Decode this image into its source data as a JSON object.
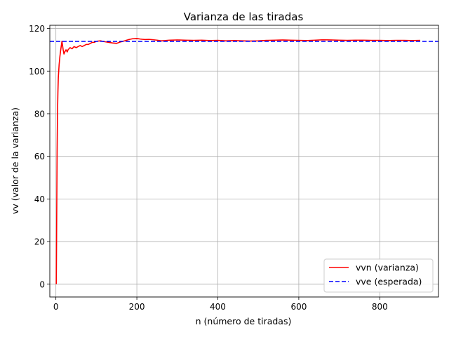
{
  "chart_data": {
    "type": "line",
    "title": "Varianza de las tiradas",
    "xlabel": "n (número de tiradas)",
    "ylabel": "vv (valor de la varianza)",
    "xlim": [
      -15,
      945
    ],
    "ylim": [
      -6,
      121.5
    ],
    "xticks": [
      0,
      200,
      400,
      600,
      800
    ],
    "yticks": [
      0,
      20,
      40,
      60,
      80,
      100,
      120
    ],
    "grid": true,
    "legend_position": "lower-right",
    "series": [
      {
        "name": "vvn (varianza)",
        "color": "#ff0000",
        "style": "solid",
        "x": [
          1,
          2,
          3,
          4,
          5,
          6,
          8,
          10,
          12,
          15,
          18,
          20,
          22,
          25,
          28,
          30,
          35,
          40,
          45,
          50,
          55,
          60,
          65,
          70,
          75,
          80,
          85,
          90,
          95,
          100,
          110,
          120,
          130,
          140,
          150,
          160,
          170,
          180,
          190,
          200,
          210,
          220,
          230,
          240,
          250,
          260,
          270,
          280,
          300,
          320,
          340,
          360,
          380,
          400,
          420,
          440,
          460,
          480,
          500,
          520,
          540,
          560,
          580,
          600,
          620,
          640,
          660,
          680,
          700,
          720,
          740,
          760,
          780,
          800,
          820,
          840,
          860,
          880,
          900
        ],
        "y": [
          0,
          30,
          62,
          80,
          90,
          97,
          103,
          107,
          110,
          114,
          110,
          108,
          109,
          110,
          109,
          110,
          111,
          110.5,
          111.5,
          111,
          111.5,
          112,
          111.5,
          112,
          112.5,
          112.5,
          113,
          113.5,
          113.5,
          114,
          114.2,
          113.8,
          113.5,
          113.2,
          113,
          113.7,
          114.2,
          114.8,
          115.2,
          115.3,
          115,
          114.8,
          114.9,
          114.7,
          114.5,
          114.2,
          114.3,
          114.5,
          114.6,
          114.5,
          114.4,
          114.5,
          114.3,
          114.4,
          114.2,
          114.3,
          114.2,
          114.1,
          114.2,
          114.4,
          114.5,
          114.6,
          114.5,
          114.4,
          114.3,
          114.5,
          114.7,
          114.6,
          114.5,
          114.4,
          114.5,
          114.5,
          114.4,
          114.4,
          114.3,
          114.4,
          114.4,
          114.3,
          114.4
        ]
      },
      {
        "name": "vve (esperada)",
        "color": "#0000ff",
        "style": "dashed",
        "y_constant": 114
      }
    ]
  }
}
